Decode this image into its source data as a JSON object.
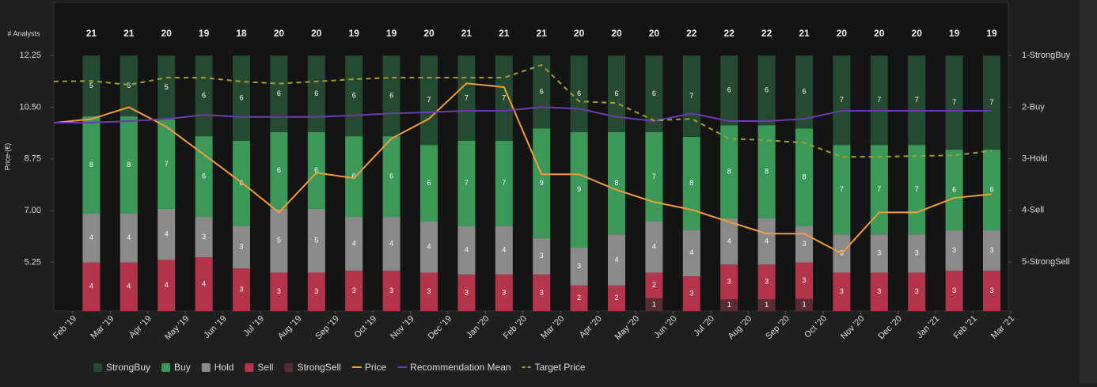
{
  "chart_data": {
    "type": "bar",
    "stacked_percent": true,
    "y_label": "Price-(€)",
    "analysts_label": "# Analysts",
    "categories": [
      "Feb '19",
      "Mar '19",
      "Apr '19",
      "May '19",
      "Jun '19",
      "Jul '19",
      "Aug '19",
      "Sep '19",
      "Oct '19",
      "Nov '19",
      "Dec '19",
      "Jan '20",
      "Feb '20",
      "Mar '20",
      "Apr '20",
      "May '20",
      "Jun '20",
      "Jul '20",
      "Aug '20",
      "Sep '20",
      "Oct '20",
      "Nov '20",
      "Dec '20",
      "Jan '21",
      "Feb '21",
      "Mar '21"
    ],
    "analysts": [
      null,
      21,
      21,
      20,
      19,
      18,
      20,
      20,
      19,
      19,
      20,
      21,
      21,
      21,
      20,
      20,
      20,
      22,
      22,
      22,
      21,
      20,
      20,
      20,
      19,
      19
    ],
    "ylim": [
      3.6,
      14.05
    ],
    "yticks": [
      {
        "value": 12.25,
        "label": "12.25"
      },
      {
        "value": 10.5,
        "label": "10.50"
      },
      8.75,
      {
        "value": 7,
        "label": "7.00"
      },
      5.25
    ],
    "y2lim": [
      5.95,
      -0.03
    ],
    "y2ticks": [
      {
        "value": 1,
        "label": "1-StrongBuy"
      },
      {
        "value": 2,
        "label": "2-Buy"
      },
      {
        "value": 3,
        "label": "3-Hold"
      },
      {
        "value": 4,
        "label": "4-Sell"
      },
      {
        "value": 5,
        "label": "5-StrongSell"
      }
    ],
    "series": [
      {
        "name": "StrongBuy",
        "kind": "bar",
        "color": "#264a31",
        "values": [
          null,
          5,
          5,
          5,
          6,
          6,
          6,
          6,
          6,
          6,
          7,
          7,
          7,
          6,
          6,
          6,
          6,
          7,
          6,
          6,
          6,
          7,
          7,
          7,
          7,
          7
        ]
      },
      {
        "name": "Buy",
        "kind": "bar",
        "color": "#3a9858",
        "values": [
          null,
          8,
          8,
          7,
          6,
          6,
          6,
          6,
          6,
          6,
          6,
          7,
          7,
          9,
          9,
          8,
          7,
          8,
          8,
          8,
          8,
          7,
          7,
          7,
          6,
          6
        ]
      },
      {
        "name": "Hold",
        "kind": "bar",
        "color": "#8a8a8a",
        "values": [
          null,
          4,
          4,
          4,
          3,
          3,
          5,
          5,
          4,
          4,
          4,
          4,
          4,
          3,
          3,
          4,
          4,
          4,
          4,
          4,
          3,
          3,
          3,
          3,
          3,
          3
        ]
      },
      {
        "name": "Sell",
        "kind": "bar",
        "color": "#b3354a",
        "values": [
          null,
          4,
          4,
          4,
          4,
          3,
          3,
          3,
          3,
          3,
          3,
          3,
          3,
          3,
          2,
          2,
          2,
          3,
          3,
          3,
          3,
          3,
          3,
          3,
          3,
          3
        ]
      },
      {
        "name": "StrongSell",
        "kind": "bar",
        "color": "#5a2b31",
        "values": [
          null,
          0,
          0,
          0,
          0,
          0,
          0,
          0,
          0,
          0,
          0,
          0,
          0,
          0,
          0,
          0,
          1,
          0,
          1,
          1,
          1,
          0,
          0,
          0,
          0,
          0
        ]
      },
      {
        "name": "Price",
        "kind": "line",
        "color": "#f39c3c",
        "values": [
          9.97,
          10.1,
          10.5,
          9.84,
          8.9,
          7.96,
          6.94,
          8.28,
          8.1,
          9.44,
          10.11,
          11.31,
          11.18,
          8.23,
          8.23,
          7.7,
          7.29,
          7.03,
          6.62,
          6.22,
          6.22,
          5.55,
          6.94,
          6.94,
          7.43,
          7.56
        ]
      },
      {
        "name": "Recommendation Mean",
        "kind": "line",
        "axis": "y2",
        "color": "#6c3cae",
        "values": [
          2.3,
          2.3,
          2.27,
          2.23,
          2.15,
          2.19,
          2.19,
          2.19,
          2.16,
          2.12,
          2.1,
          2.07,
          2.07,
          2.0,
          2.03,
          2.19,
          2.27,
          2.12,
          2.27,
          2.27,
          2.23,
          2.07,
          2.07,
          2.07,
          2.07,
          2.07
        ]
      },
      {
        "name": "Target Price",
        "kind": "line",
        "dashed": true,
        "color": "#a3a032",
        "values": [
          11.37,
          11.39,
          11.26,
          11.5,
          11.5,
          11.37,
          11.3,
          11.37,
          11.45,
          11.5,
          11.5,
          11.5,
          11.5,
          11.93,
          10.7,
          10.64,
          10.05,
          10.11,
          9.44,
          9.38,
          9.3,
          8.82,
          8.82,
          8.85,
          8.87,
          9.03
        ]
      }
    ]
  }
}
